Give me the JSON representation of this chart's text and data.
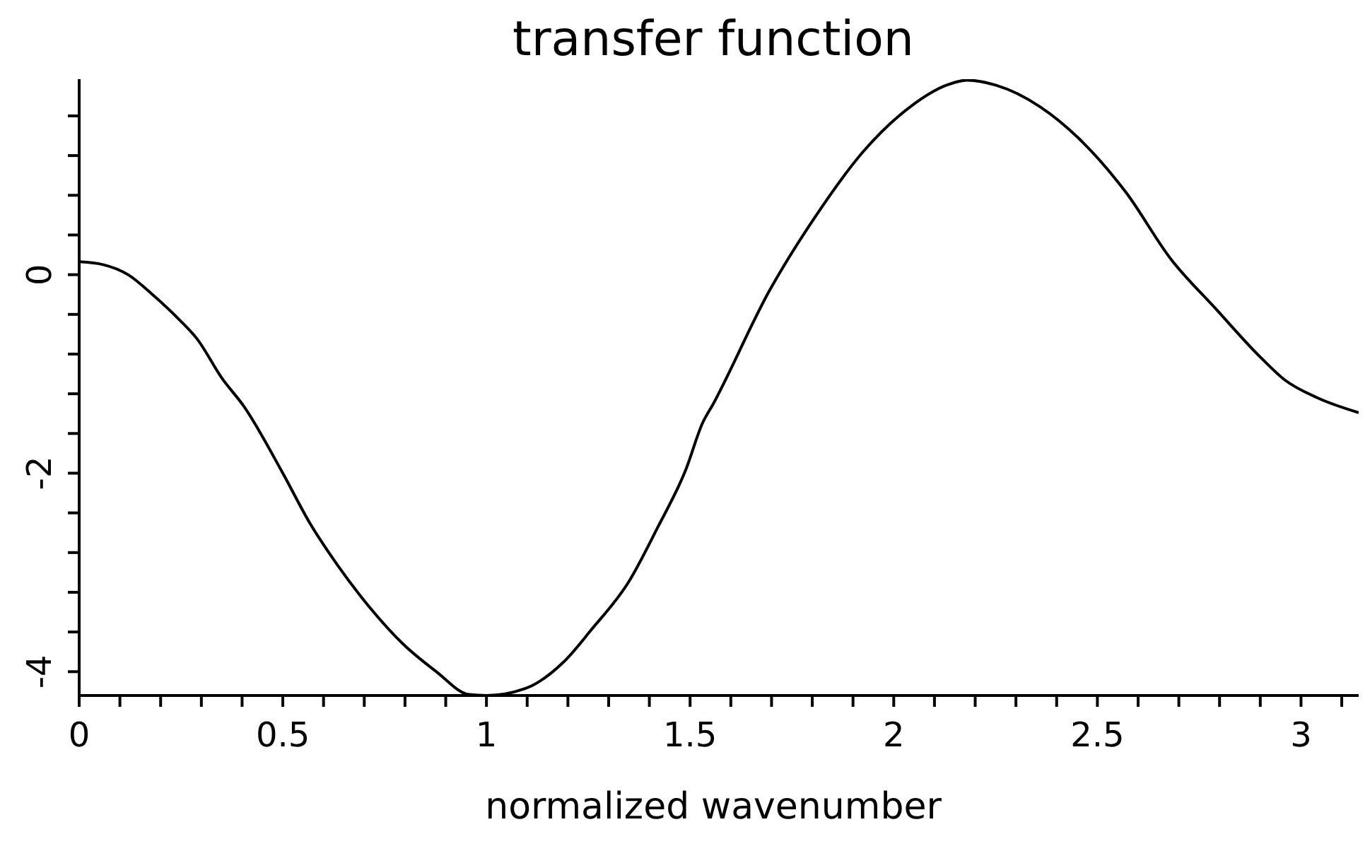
{
  "chart_data": {
    "type": "line",
    "title": "transfer function",
    "xlabel": "normalized wavenumber",
    "xlim": [
      0,
      3.1416
    ],
    "ylim": [
      -4.24,
      1.97
    ],
    "xticks": [
      0,
      {
        "value": 0.1,
        "label": null
      },
      {
        "value": 0.2,
        "label": null
      },
      {
        "value": 0.3,
        "label": null
      },
      {
        "value": 0.4,
        "label": null
      },
      0.5,
      {
        "value": 0.6,
        "label": null
      },
      {
        "value": 0.7,
        "label": null
      },
      {
        "value": 0.8,
        "label": null
      },
      {
        "value": 0.9,
        "label": null
      },
      1,
      {
        "value": 1.1,
        "label": null
      },
      {
        "value": 1.2,
        "label": null
      },
      {
        "value": 1.3,
        "label": null
      },
      {
        "value": 1.4,
        "label": null
      },
      1.5,
      {
        "value": 1.6,
        "label": null
      },
      {
        "value": 1.7,
        "label": null
      },
      {
        "value": 1.8,
        "label": null
      },
      {
        "value": 1.9,
        "label": null
      },
      2,
      {
        "value": 2.1,
        "label": null
      },
      {
        "value": 2.2,
        "label": null
      },
      {
        "value": 2.3,
        "label": null
      },
      {
        "value": 2.4,
        "label": null
      },
      2.5,
      {
        "value": 2.6,
        "label": null
      },
      {
        "value": 2.7,
        "label": null
      },
      {
        "value": 2.8,
        "label": null
      },
      {
        "value": 2.9,
        "label": null
      },
      3,
      {
        "value": 3.1,
        "label": null
      }
    ],
    "yticks": [
      -4,
      {
        "value": -3.6,
        "label": null
      },
      {
        "value": -3.2,
        "label": null
      },
      {
        "value": -2.8,
        "label": null
      },
      {
        "value": -2.4,
        "label": null
      },
      -2,
      {
        "value": -1.6,
        "label": null
      },
      {
        "value": -1.2,
        "label": null
      },
      {
        "value": -0.8,
        "label": null
      },
      {
        "value": -0.4,
        "label": null
      },
      0,
      {
        "value": 0.4,
        "label": null
      },
      {
        "value": 0.8,
        "label": null
      },
      {
        "value": 1.2,
        "label": null
      },
      {
        "value": 1.6,
        "label": null
      }
    ],
    "marker": "none",
    "line_style": "solid",
    "series": [
      {
        "color": "#000000",
        "x": [
          0,
          0.06,
          0.12,
          0.18,
          0.245,
          0.29,
          0.35,
          0.405,
          0.5,
          0.566,
          0.635,
          0.715,
          0.795,
          0.877,
          0.957,
          1.0,
          1.095,
          1.19,
          1.257,
          1.35,
          1.42,
          1.49,
          1.53,
          1.557,
          1.695,
          1.81,
          1.925,
          2.04,
          2.13,
          2.18,
          2.25,
          2.36,
          2.465,
          2.57,
          2.68,
          2.79,
          2.9,
          2.96,
          3.04,
          3.1416
        ],
        "values": [
          0.13,
          0.1,
          0,
          -0.2,
          -0.45,
          -0.65,
          -1.04,
          -1.33,
          -2.0,
          -2.5,
          -2.93,
          -3.36,
          -3.72,
          -4.0,
          -4.23,
          -4.24,
          -4.17,
          -3.9,
          -3.58,
          -3.09,
          -2.55,
          -1.96,
          -1.5,
          -1.3,
          -0.16,
          0.6,
          1.24,
          1.69,
          1.91,
          1.96,
          1.91,
          1.69,
          1.33,
          0.83,
          0.16,
          -0.34,
          -0.83,
          -1.06,
          -1.24,
          -1.39
        ]
      }
    ]
  }
}
